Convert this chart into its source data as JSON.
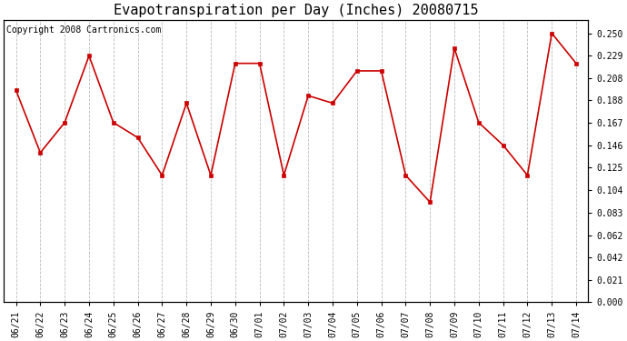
{
  "title": "Evapotranspiration per Day (Inches) 20080715",
  "copyright_text": "Copyright 2008 Cartronics.com",
  "dates": [
    "06/21",
    "06/22",
    "06/23",
    "06/24",
    "06/25",
    "06/26",
    "06/27",
    "06/28",
    "06/29",
    "06/30",
    "07/01",
    "07/02",
    "07/03",
    "07/04",
    "07/05",
    "07/06",
    "07/07",
    "07/08",
    "07/09",
    "07/10",
    "07/11",
    "07/12",
    "07/13",
    "07/14"
  ],
  "values": [
    0.197,
    0.139,
    0.167,
    0.229,
    0.167,
    0.153,
    0.118,
    0.185,
    0.118,
    0.222,
    0.222,
    0.118,
    0.192,
    0.185,
    0.215,
    0.215,
    0.118,
    0.093,
    0.236,
    0.167,
    0.146,
    0.118,
    0.25,
    0.222
  ],
  "ylim": [
    0.0,
    0.2625
  ],
  "yticks": [
    0.0,
    0.021,
    0.042,
    0.062,
    0.083,
    0.104,
    0.125,
    0.146,
    0.167,
    0.188,
    0.208,
    0.229,
    0.25
  ],
  "line_color": "#cc0000",
  "marker_color": "#cc0000",
  "bg_color": "#ffffff",
  "plot_bg_color": "#ffffff",
  "grid_color": "#bbbbbb",
  "title_fontsize": 11,
  "tick_fontsize": 7,
  "copyright_fontsize": 7
}
